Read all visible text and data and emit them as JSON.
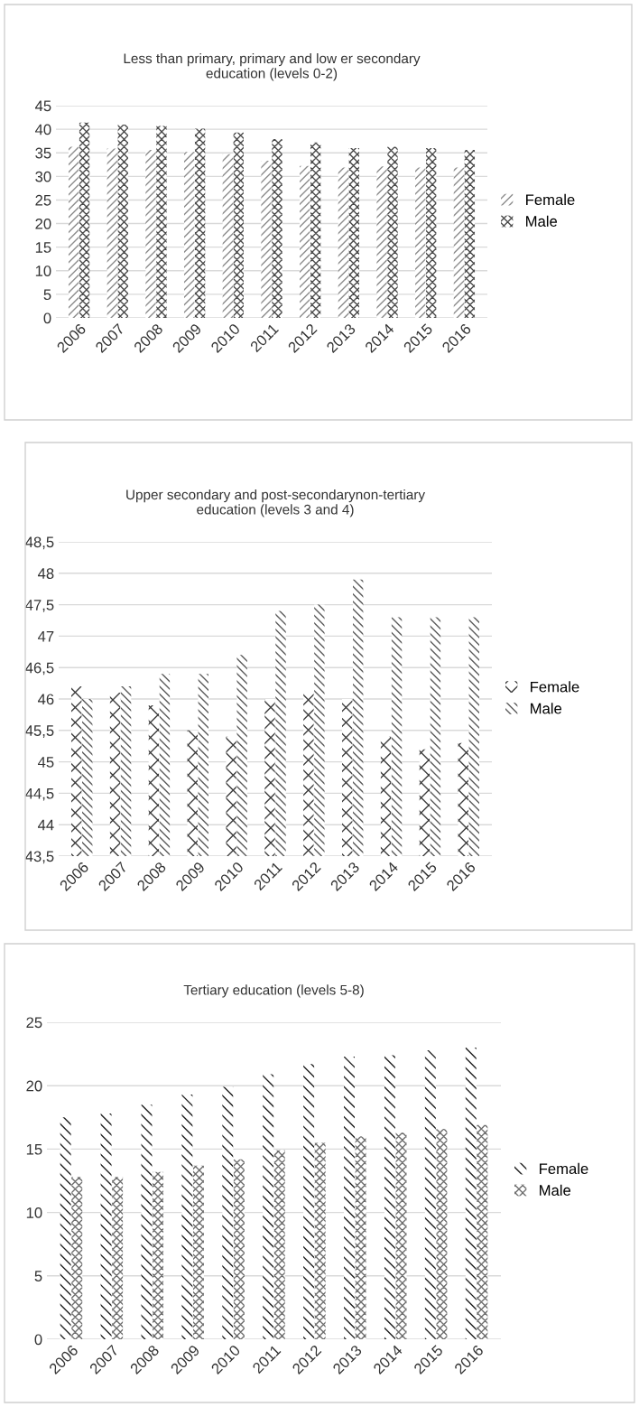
{
  "chart_data": [
    {
      "type": "bar",
      "title": "Less than primary, primary and low er secondary\neducation (levels 0-2)",
      "categories": [
        "2006",
        "2007",
        "2008",
        "2009",
        "2010",
        "2011",
        "2012",
        "2013",
        "2014",
        "2015",
        "2016"
      ],
      "series": [
        {
          "name": "Female",
          "color": "#8c8c8c",
          "values": [
            36.3,
            35.9,
            35.6,
            35.2,
            34.7,
            33.3,
            32.2,
            31.9,
            32.1,
            31.9,
            31.9
          ]
        },
        {
          "name": "Male",
          "color": "#4a4a4a",
          "values": [
            41.4,
            41.0,
            40.7,
            40.1,
            39.3,
            37.9,
            37.2,
            36.0,
            36.3,
            36.0,
            35.6
          ]
        }
      ],
      "ylim": [
        0,
        45
      ],
      "yticks": [
        0,
        5,
        10,
        15,
        20,
        25,
        30,
        35,
        40,
        45
      ],
      "grid": "y",
      "legend": "right"
    },
    {
      "type": "bar",
      "title": "Upper secondary and post-secondarynon-tertiary\neducation (levels 3 and 4)",
      "categories": [
        "2006",
        "2007",
        "2008",
        "2009",
        "2010",
        "2011",
        "2012",
        "2013",
        "2014",
        "2015",
        "2016"
      ],
      "series": [
        {
          "name": "Female",
          "color": "#3c3c3c",
          "values": [
            46.2,
            46.1,
            45.9,
            45.5,
            45.4,
            46.0,
            46.1,
            46.0,
            45.4,
            45.2,
            45.3
          ]
        },
        {
          "name": "Male",
          "color": "#5a5a5a",
          "values": [
            46.0,
            46.2,
            46.4,
            46.4,
            46.7,
            47.4,
            47.5,
            47.9,
            47.3,
            47.3,
            47.3
          ]
        }
      ],
      "ylim": [
        43.5,
        48.5
      ],
      "yticks": [
        {
          "value": 43.5,
          "label": "43,5"
        },
        44,
        {
          "value": 44.5,
          "label": "44,5"
        },
        45,
        {
          "value": 45.5,
          "label": "45,5"
        },
        46,
        {
          "value": 46.5,
          "label": "46,5"
        },
        47,
        {
          "value": 47.5,
          "label": "47,5"
        },
        48,
        {
          "value": 48.5,
          "label": "48,5"
        }
      ],
      "grid": "y",
      "legend": "right"
    },
    {
      "type": "bar",
      "title": "Tertiary education (levels 5-8)",
      "categories": [
        "2006",
        "2007",
        "2008",
        "2009",
        "2010",
        "2011",
        "2012",
        "2013",
        "2014",
        "2015",
        "2016"
      ],
      "series": [
        {
          "name": "Female",
          "color": "#1e1e1e",
          "values": [
            17.5,
            17.8,
            18.5,
            19.3,
            19.9,
            20.9,
            21.7,
            22.3,
            22.4,
            22.8,
            23.0
          ]
        },
        {
          "name": "Male",
          "color": "#6e6e6e",
          "values": [
            12.8,
            12.8,
            13.2,
            13.7,
            14.2,
            14.9,
            15.5,
            16.0,
            16.3,
            16.6,
            16.9
          ]
        }
      ],
      "ylim": [
        0,
        25
      ],
      "yticks": [
        0,
        5,
        10,
        15,
        20,
        25
      ],
      "grid": "y",
      "legend": "right"
    }
  ]
}
